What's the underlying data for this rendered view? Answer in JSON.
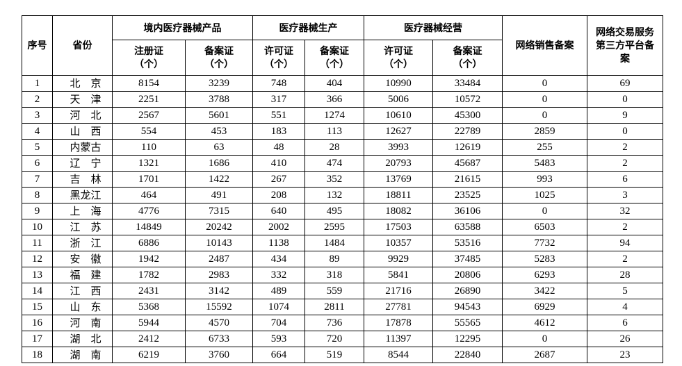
{
  "table": {
    "header": {
      "col_serial": "序号",
      "col_province": "省份",
      "group_domestic_products": "境内医疗器械产品",
      "group_production": "医疗器械生产",
      "group_operation": "医疗器械经营",
      "col_network_sales": "网络销售备案",
      "col_third_party": "网络交易服务第三方平台备案",
      "sub_headers": [
        {
          "label": "注册证",
          "unit": "（个）"
        },
        {
          "label": "备案证",
          "unit": "（个）"
        },
        {
          "label": "许可证",
          "unit": "（个）"
        },
        {
          "label": "备案证",
          "unit": "（个）"
        },
        {
          "label": "许可证",
          "unit": "（个）"
        },
        {
          "label": "备案证",
          "unit": "（个）"
        }
      ]
    },
    "rows": [
      {
        "no": "1",
        "province": "北京",
        "values": [
          "8154",
          "3239",
          "748",
          "404",
          "10990",
          "33484",
          "0",
          "69"
        ]
      },
      {
        "no": "2",
        "province": "天津",
        "values": [
          "2251",
          "3788",
          "317",
          "366",
          "5006",
          "10572",
          "0",
          "0"
        ]
      },
      {
        "no": "3",
        "province": "河北",
        "values": [
          "2567",
          "5601",
          "551",
          "1274",
          "10610",
          "45300",
          "0",
          "9"
        ]
      },
      {
        "no": "4",
        "province": "山西",
        "values": [
          "554",
          "453",
          "183",
          "113",
          "12627",
          "22789",
          "2859",
          "0"
        ]
      },
      {
        "no": "5",
        "province": "内蒙古",
        "values": [
          "110",
          "63",
          "48",
          "28",
          "3993",
          "12619",
          "255",
          "2"
        ]
      },
      {
        "no": "6",
        "province": "辽宁",
        "values": [
          "1321",
          "1686",
          "410",
          "474",
          "20793",
          "45687",
          "5483",
          "2"
        ]
      },
      {
        "no": "7",
        "province": "吉林",
        "values": [
          "1701",
          "1422",
          "267",
          "352",
          "13769",
          "21615",
          "993",
          "6"
        ]
      },
      {
        "no": "8",
        "province": "黑龙江",
        "values": [
          "464",
          "491",
          "208",
          "132",
          "18811",
          "23525",
          "1025",
          "3"
        ]
      },
      {
        "no": "9",
        "province": "上海",
        "values": [
          "4776",
          "7315",
          "640",
          "495",
          "18082",
          "36106",
          "0",
          "32"
        ]
      },
      {
        "no": "10",
        "province": "江苏",
        "values": [
          "14849",
          "20242",
          "2002",
          "2595",
          "17503",
          "63588",
          "6503",
          "2"
        ]
      },
      {
        "no": "11",
        "province": "浙江",
        "values": [
          "6886",
          "10143",
          "1138",
          "1484",
          "10357",
          "53516",
          "7732",
          "94"
        ]
      },
      {
        "no": "12",
        "province": "安徽",
        "values": [
          "1942",
          "2487",
          "434",
          "89",
          "9929",
          "37485",
          "5283",
          "2"
        ]
      },
      {
        "no": "13",
        "province": "福建",
        "values": [
          "1782",
          "2983",
          "332",
          "318",
          "5841",
          "20806",
          "6293",
          "28"
        ]
      },
      {
        "no": "14",
        "province": "江西",
        "values": [
          "2431",
          "3142",
          "489",
          "559",
          "21716",
          "26890",
          "3422",
          "5"
        ]
      },
      {
        "no": "15",
        "province": "山东",
        "values": [
          "5368",
          "15592",
          "1074",
          "2811",
          "27781",
          "94543",
          "6929",
          "4"
        ]
      },
      {
        "no": "16",
        "province": "河南",
        "values": [
          "5944",
          "4570",
          "704",
          "736",
          "17878",
          "55565",
          "4612",
          "6"
        ]
      },
      {
        "no": "17",
        "province": "湖北",
        "values": [
          "2412",
          "6733",
          "593",
          "720",
          "11397",
          "12295",
          "0",
          "26"
        ]
      },
      {
        "no": "18",
        "province": "湖南",
        "values": [
          "6219",
          "3760",
          "664",
          "519",
          "8544",
          "22840",
          "2687",
          "23"
        ]
      }
    ],
    "colors": {
      "border": "#000000",
      "text": "#000000",
      "background": "#ffffff"
    }
  }
}
